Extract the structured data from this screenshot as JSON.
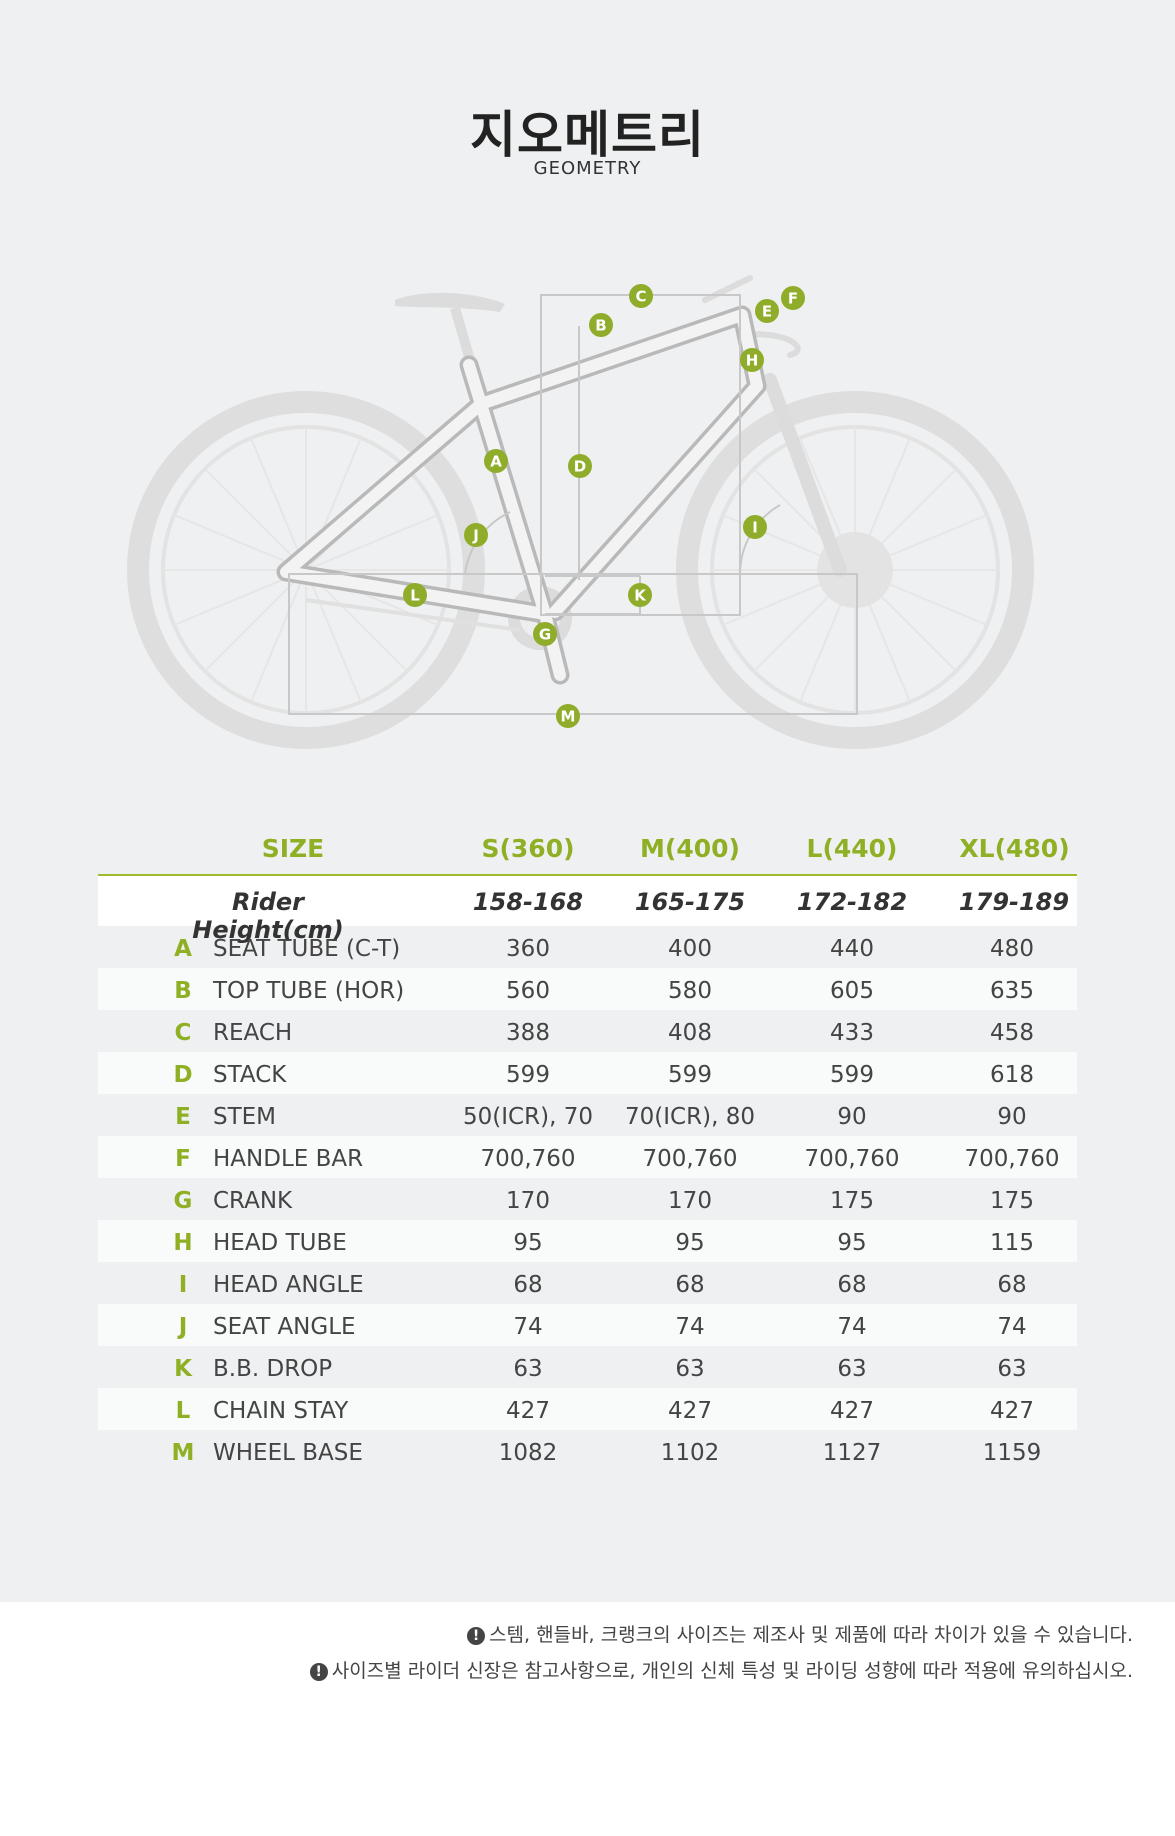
{
  "header": {
    "title": "지오메트리",
    "subtitle": "GEOMETRY"
  },
  "diagram": {
    "labels": [
      "A",
      "B",
      "C",
      "D",
      "E",
      "F",
      "G",
      "H",
      "I",
      "J",
      "K",
      "L",
      "M"
    ],
    "accent": "#8fac2a",
    "frame_color": "#cfcfcf",
    "wheel_color": "#dedede"
  },
  "table": {
    "size_label": "SIZE",
    "sizes": [
      "S(360)",
      "M(400)",
      "L(440)",
      "XL(480)"
    ],
    "rider_height_label": "Rider Height(cm)",
    "rider_heights": [
      "158-168",
      "165-175",
      "172-182",
      "179-189"
    ],
    "rows": [
      {
        "letter": "A",
        "label": "SEAT TUBE (C-T)",
        "values": [
          "360",
          "400",
          "440",
          "480"
        ]
      },
      {
        "letter": "B",
        "label": "TOP TUBE (HOR)",
        "values": [
          "560",
          "580",
          "605",
          "635"
        ]
      },
      {
        "letter": "C",
        "label": "REACH",
        "values": [
          "388",
          "408",
          "433",
          "458"
        ]
      },
      {
        "letter": "D",
        "label": "STACK",
        "values": [
          "599",
          "599",
          "599",
          "618"
        ]
      },
      {
        "letter": "E",
        "label": "STEM",
        "values": [
          "50(ICR), 70",
          "70(ICR), 80",
          "90",
          "90"
        ]
      },
      {
        "letter": "F",
        "label": "HANDLE BAR",
        "values": [
          "700,760",
          "700,760",
          "700,760",
          "700,760"
        ]
      },
      {
        "letter": "G",
        "label": "CRANK",
        "values": [
          "170",
          "170",
          "175",
          "175"
        ]
      },
      {
        "letter": "H",
        "label": "HEAD TUBE",
        "values": [
          "95",
          "95",
          "95",
          "115"
        ]
      },
      {
        "letter": "I",
        "label": "HEAD ANGLE",
        "values": [
          "68",
          "68",
          "68",
          "68"
        ]
      },
      {
        "letter": "J",
        "label": "SEAT ANGLE",
        "values": [
          "74",
          "74",
          "74",
          "74"
        ]
      },
      {
        "letter": "K",
        "label": "B.B. DROP",
        "values": [
          "63",
          "63",
          "63",
          "63"
        ]
      },
      {
        "letter": "L",
        "label": "CHAIN STAY",
        "values": [
          "427",
          "427",
          "427",
          "427"
        ]
      },
      {
        "letter": "M",
        "label": "WHEEL BASE",
        "values": [
          "1082",
          "1102",
          "1127",
          "1159"
        ]
      }
    ]
  },
  "notes": [
    "스템, 핸들바, 크랭크의 사이즈는 제조사 및 제품에 따라 차이가 있을 수 있습니다.",
    "사이즈별 라이더 신장은 참고사항으로, 개인의 신체 특성 및 라이딩 성향에 따라 적용에 유의하십시오."
  ],
  "note_icon": "exclamation-circle-icon"
}
